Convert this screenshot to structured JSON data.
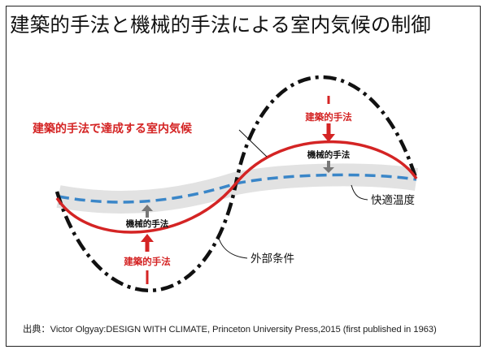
{
  "title": "建築的手法と機械的手法による室内気候の制御",
  "labels": {
    "architectural_result": "建築的手法で達成する室内気候",
    "comfort_zone": "快適温度",
    "external_conditions": "外部条件",
    "arch_method_top": "建築的手法",
    "mech_method_top": "機械的手法",
    "mech_method_bottom": "機械的手法",
    "arch_method_bottom": "建築的手法"
  },
  "source": "出典：Victor Olgyay:DESIGN WITH CLIMATE, Princeton University Press,2015 (first published in 1963)",
  "colors": {
    "red": "#d42424",
    "blue": "#3a86c8",
    "band": "#e2e2e2",
    "black": "#111111",
    "arrow_gray": "#777777"
  }
}
